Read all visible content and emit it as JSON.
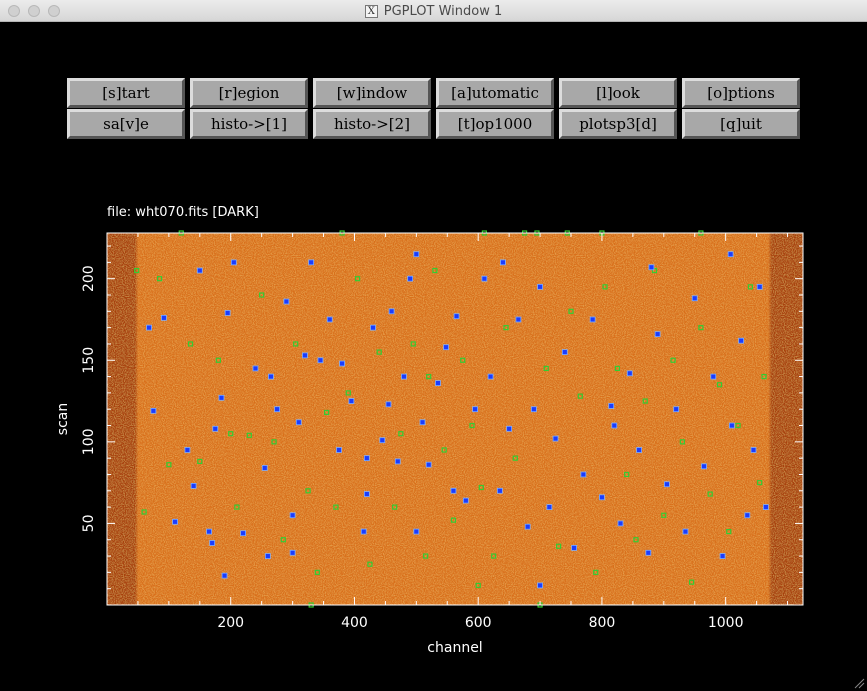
{
  "window": {
    "title": "PGPLOT Window 1",
    "icon_name": "x11-icon",
    "icon_glyph": "X"
  },
  "toolbar": {
    "row1": [
      "[s]tart",
      "[r]egion",
      "[w]indow",
      "[a]utomatic",
      "[l]ook",
      "[o]ptions"
    ],
    "row2": [
      "sa[v]e",
      "histo->[1]",
      "histo->[2]",
      "[t]op1000",
      "plotsp3[d]",
      "[q]uit"
    ]
  },
  "plot": {
    "file_label": "file: wht070.fits [DARK]",
    "background_color": "#d9701a",
    "edge_color": "#a8400c",
    "marker_blue": "#1a3cff",
    "marker_green": "#33cc33"
  },
  "chart_data": {
    "type": "heatmap",
    "title": "file: wht070.fits [DARK]",
    "xlabel": "channel",
    "ylabel": "scan",
    "xlim": [
      0,
      1125
    ],
    "ylim": [
      0,
      228
    ],
    "xticks": [
      200,
      400,
      600,
      800,
      1000
    ],
    "yticks": [
      50,
      100,
      150,
      200
    ],
    "xtick_labels": [
      "200",
      "400",
      "600",
      "800",
      "1000"
    ],
    "ytick_labels": [
      "50",
      "100",
      "150",
      "200"
    ],
    "markers_blue": [
      [
        75,
        119
      ],
      [
        92,
        176
      ],
      [
        110,
        51
      ],
      [
        140,
        73
      ],
      [
        165,
        45
      ],
      [
        170,
        38
      ],
      [
        175,
        108
      ],
      [
        185,
        127
      ],
      [
        195,
        179
      ],
      [
        205,
        210
      ],
      [
        220,
        44
      ],
      [
        240,
        145
      ],
      [
        255,
        84
      ],
      [
        265,
        140
      ],
      [
        275,
        120
      ],
      [
        290,
        186
      ],
      [
        300,
        55
      ],
      [
        310,
        112
      ],
      [
        320,
        153
      ],
      [
        330,
        210
      ],
      [
        345,
        150
      ],
      [
        360,
        175
      ],
      [
        375,
        95
      ],
      [
        380,
        148
      ],
      [
        395,
        125
      ],
      [
        415,
        45
      ],
      [
        420,
        68
      ],
      [
        430,
        170
      ],
      [
        445,
        101
      ],
      [
        455,
        123
      ],
      [
        470,
        88
      ],
      [
        480,
        140
      ],
      [
        490,
        200
      ],
      [
        500,
        45
      ],
      [
        510,
        112
      ],
      [
        520,
        86
      ],
      [
        535,
        136
      ],
      [
        548,
        158
      ],
      [
        565,
        177
      ],
      [
        580,
        64
      ],
      [
        595,
        120
      ],
      [
        610,
        200
      ],
      [
        620,
        140
      ],
      [
        635,
        70
      ],
      [
        650,
        108
      ],
      [
        665,
        175
      ],
      [
        680,
        48
      ],
      [
        690,
        120
      ],
      [
        700,
        195
      ],
      [
        715,
        60
      ],
      [
        725,
        102
      ],
      [
        740,
        155
      ],
      [
        755,
        35
      ],
      [
        770,
        80
      ],
      [
        785,
        175
      ],
      [
        800,
        66
      ],
      [
        815,
        122
      ],
      [
        830,
        50
      ],
      [
        845,
        142
      ],
      [
        860,
        95
      ],
      [
        875,
        32
      ],
      [
        890,
        166
      ],
      [
        905,
        74
      ],
      [
        920,
        120
      ],
      [
        935,
        45
      ],
      [
        950,
        188
      ],
      [
        965,
        85
      ],
      [
        980,
        140
      ],
      [
        995,
        30
      ],
      [
        1010,
        110
      ],
      [
        1025,
        162
      ],
      [
        1035,
        55
      ],
      [
        1045,
        95
      ],
      [
        1055,
        195
      ],
      [
        1065,
        60
      ],
      [
        68,
        170
      ],
      [
        150,
        205
      ],
      [
        260,
        30
      ],
      [
        500,
        215
      ],
      [
        700,
        12
      ],
      [
        880,
        207
      ],
      [
        1008,
        215
      ],
      [
        560,
        70
      ],
      [
        420,
        90
      ],
      [
        190,
        18
      ],
      [
        640,
        210
      ],
      [
        300,
        32
      ],
      [
        820,
        110
      ],
      [
        460,
        180
      ],
      [
        130,
        95
      ]
    ],
    "markers_green": [
      [
        60,
        57
      ],
      [
        85,
        200
      ],
      [
        100,
        86
      ],
      [
        120,
        228
      ],
      [
        135,
        160
      ],
      [
        150,
        88
      ],
      [
        180,
        150
      ],
      [
        210,
        60
      ],
      [
        230,
        104
      ],
      [
        250,
        190
      ],
      [
        270,
        100
      ],
      [
        285,
        40
      ],
      [
        305,
        160
      ],
      [
        325,
        70
      ],
      [
        340,
        20
      ],
      [
        355,
        118
      ],
      [
        370,
        60
      ],
      [
        390,
        130
      ],
      [
        405,
        200
      ],
      [
        425,
        25
      ],
      [
        440,
        155
      ],
      [
        465,
        60
      ],
      [
        475,
        105
      ],
      [
        495,
        160
      ],
      [
        515,
        30
      ],
      [
        530,
        205
      ],
      [
        545,
        95
      ],
      [
        560,
        52
      ],
      [
        575,
        150
      ],
      [
        590,
        110
      ],
      [
        605,
        72
      ],
      [
        625,
        30
      ],
      [
        645,
        170
      ],
      [
        660,
        90
      ],
      [
        675,
        228
      ],
      [
        695,
        228
      ],
      [
        710,
        145
      ],
      [
        730,
        36
      ],
      [
        750,
        180
      ],
      [
        765,
        128
      ],
      [
        790,
        20
      ],
      [
        805,
        195
      ],
      [
        825,
        145
      ],
      [
        840,
        80
      ],
      [
        855,
        40
      ],
      [
        870,
        125
      ],
      [
        885,
        205
      ],
      [
        900,
        55
      ],
      [
        915,
        150
      ],
      [
        930,
        100
      ],
      [
        945,
        14
      ],
      [
        960,
        170
      ],
      [
        975,
        68
      ],
      [
        990,
        135
      ],
      [
        1005,
        45
      ],
      [
        1020,
        110
      ],
      [
        1040,
        195
      ],
      [
        1055,
        75
      ],
      [
        1062,
        140
      ],
      [
        48,
        205
      ],
      [
        330,
        0
      ],
      [
        700,
        0
      ],
      [
        744,
        228
      ],
      [
        610,
        228
      ],
      [
        800,
        228
      ],
      [
        380,
        228
      ],
      [
        200,
        105
      ],
      [
        600,
        12
      ],
      [
        960,
        228
      ],
      [
        520,
        140
      ]
    ]
  }
}
